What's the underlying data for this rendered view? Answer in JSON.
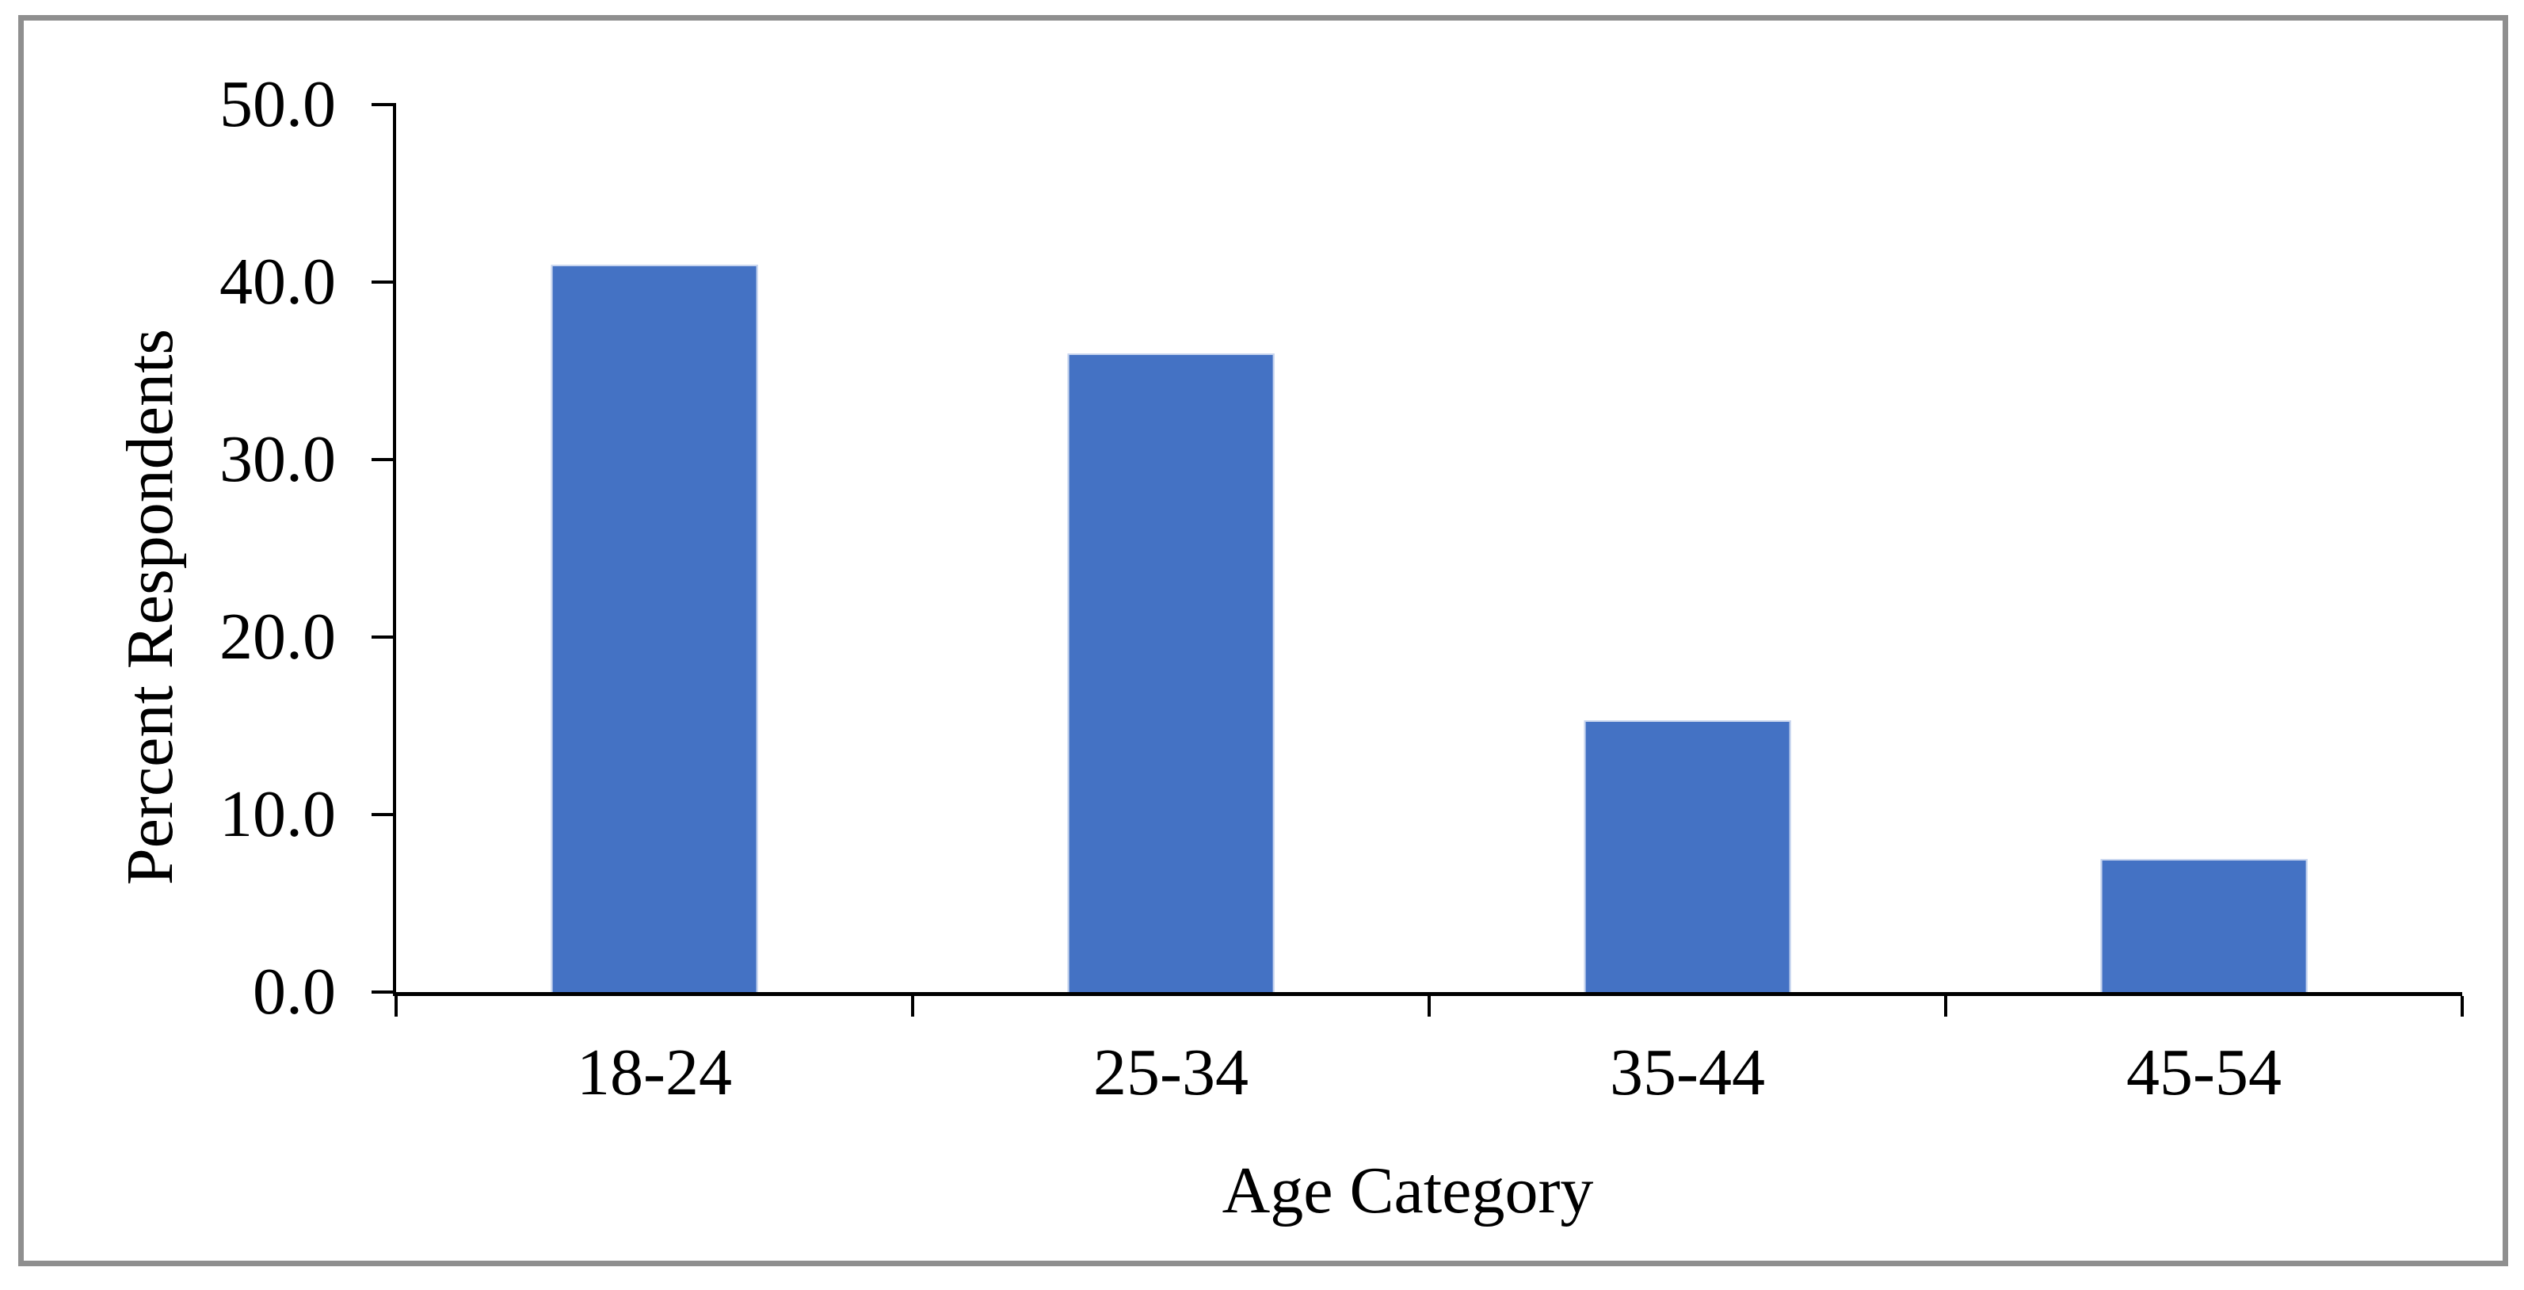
{
  "chart_data": {
    "type": "bar",
    "title": "",
    "categories": [
      "18-24",
      "25-34",
      "35-44",
      "45-54"
    ],
    "values": [
      41.0,
      36.0,
      15.3,
      7.5
    ],
    "xlabel": "Age Category",
    "ylabel": "Percent Respondents",
    "ylim": [
      0,
      50
    ],
    "ytick_labels": [
      "0.0",
      "10.0",
      "20.0",
      "30.0",
      "40.0",
      "50.0"
    ],
    "grid": "off",
    "legend": "none",
    "bar_color": "#4472C4",
    "bar_border_color": "#c9d6ef",
    "axis_color": "#000000",
    "text_color": "#000000"
  },
  "frame": {
    "border_color": "#8f8f8f",
    "background": "#ffffff"
  }
}
